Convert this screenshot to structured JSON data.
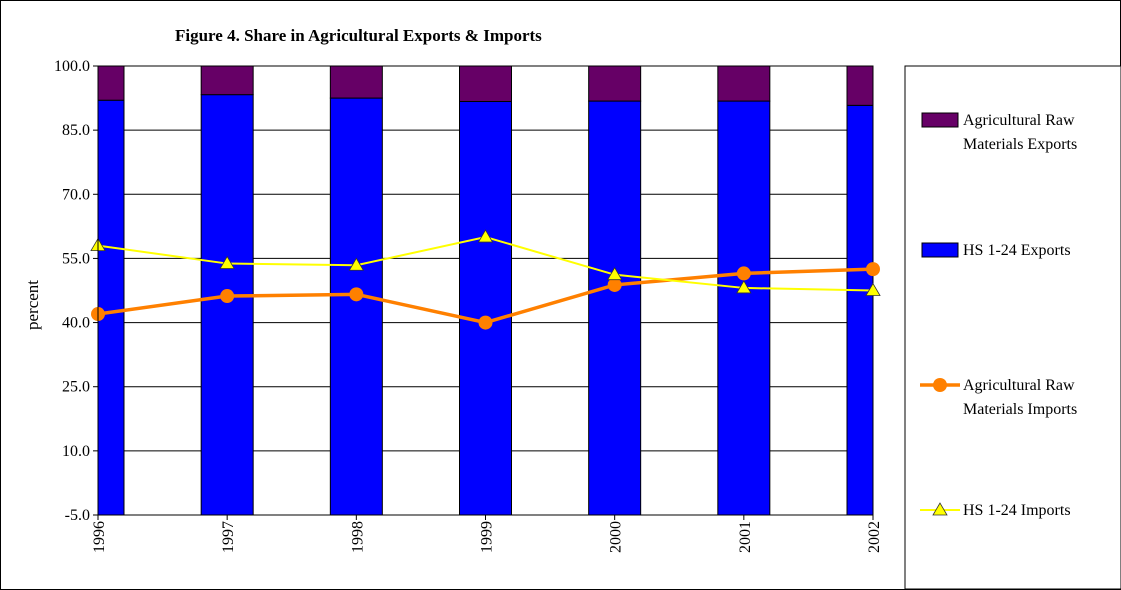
{
  "chart_data": {
    "type": "bar",
    "title": "Figure 4. Share in Agricultural Exports & Imports",
    "ylabel": "percent",
    "xlabel": "",
    "ylim": [
      -5.0,
      100.0
    ],
    "ytick_labels": [
      "100.0",
      "85.0",
      "70.0",
      "55.0",
      "40.0",
      "25.0",
      "10.0",
      "-5.0"
    ],
    "categories": [
      "1996",
      "1997",
      "1998",
      "1999",
      "2000",
      "2001",
      "2002"
    ],
    "stacked": true,
    "grid": true,
    "legend_position": "right",
    "series": [
      {
        "name": "Agricultural Raw Materials Exports",
        "legend_lines": [
          "Agricultural Raw",
          "Materials Exports"
        ],
        "kind": "bar",
        "color": "#660066",
        "values": [
          8.0,
          6.7,
          7.5,
          8.3,
          8.2,
          8.2,
          9.2
        ]
      },
      {
        "name": "HS 1-24 Exports",
        "legend_lines": [
          "HS 1-24 Exports"
        ],
        "kind": "bar",
        "color": "#0000FF",
        "values": [
          92.0,
          93.3,
          92.5,
          91.7,
          91.8,
          91.8,
          90.8
        ]
      },
      {
        "name": "Agricultural Raw Materials Imports",
        "legend_lines": [
          "Agricultural Raw",
          "Materials Imports"
        ],
        "kind": "line",
        "marker": "circle",
        "color": "#FF8000",
        "values": [
          42.0,
          46.2,
          46.6,
          40.0,
          48.8,
          51.5,
          52.5
        ]
      },
      {
        "name": "HS 1-24 Imports",
        "legend_lines": [
          "HS 1-24 Imports"
        ],
        "kind": "line",
        "marker": "triangle",
        "color": "#FFFF00",
        "values": [
          58.0,
          53.8,
          53.4,
          60.0,
          51.2,
          48.1,
          47.5
        ]
      }
    ]
  }
}
